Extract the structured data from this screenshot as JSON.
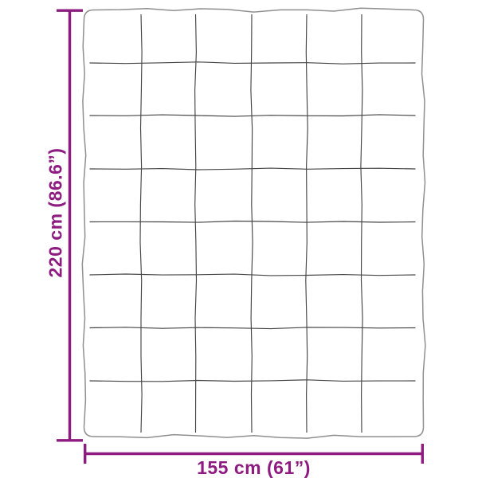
{
  "diagram": {
    "subject": "blanket-dimension-diagram",
    "height_label": "220 cm (86.6”)",
    "width_label": "155 cm (61”)",
    "grid": {
      "columns": 6,
      "rows": 8
    },
    "colors": {
      "dimension_accent": "#8E1B80",
      "blanket_outline": "#8F8F8F",
      "quilt_line": "#454545",
      "background": "#FFFFFF"
    }
  }
}
